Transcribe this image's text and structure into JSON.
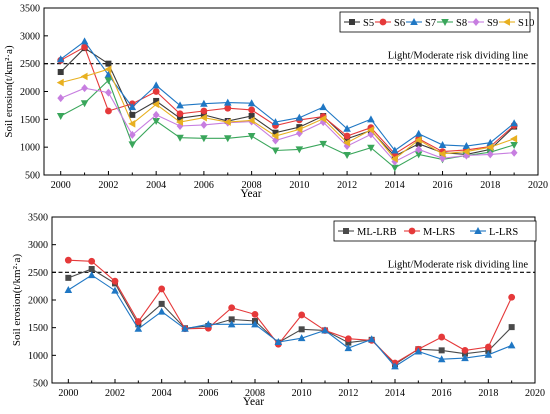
{
  "chart_data": [
    {
      "type": "line",
      "x": [
        2000,
        2001,
        2002,
        2003,
        2004,
        2005,
        2006,
        2007,
        2008,
        2009,
        2010,
        2011,
        2012,
        2013,
        2014,
        2015,
        2016,
        2017,
        2018,
        2019
      ],
      "xticks": [
        "2000",
        "2002",
        "2004",
        "2006",
        "2008",
        "2010",
        "2012",
        "2014",
        "2016",
        "2018",
        "2020"
      ],
      "yticks": [
        "500",
        "1000",
        "1500",
        "2000",
        "2500",
        "3000",
        "3500"
      ],
      "xlabel": "Year",
      "ylabel": "Soil erosion(t/km²·a)",
      "xlim": [
        1999.3,
        2020
      ],
      "ylim": [
        500,
        3500
      ],
      "legend_position": "top-right",
      "reference_line": {
        "y": 2500,
        "label": "Light/Moderate risk dividing line"
      },
      "series": [
        {
          "name": "S5",
          "color": "#3a3a3a",
          "marker": "square",
          "values": [
            2350,
            2780,
            2500,
            1580,
            1830,
            1520,
            1580,
            1470,
            1560,
            1260,
            1360,
            1560,
            1150,
            1300,
            840,
            1060,
            900,
            870,
            960,
            1370
          ]
        },
        {
          "name": "S6",
          "color": "#e5393a",
          "marker": "circle",
          "values": [
            2560,
            2800,
            1650,
            1780,
            2000,
            1600,
            1650,
            1700,
            1670,
            1390,
            1490,
            1550,
            1200,
            1350,
            880,
            1150,
            920,
            950,
            1010,
            1390
          ]
        },
        {
          "name": "S7",
          "color": "#1f77c4",
          "marker": "triangle",
          "values": [
            2580,
            2900,
            2300,
            1720,
            2110,
            1750,
            1780,
            1800,
            1790,
            1450,
            1530,
            1720,
            1330,
            1500,
            940,
            1240,
            1040,
            1020,
            1080,
            1430
          ]
        },
        {
          "name": "S8",
          "color": "#3aa65b",
          "marker": "triangle-down",
          "values": [
            1560,
            1790,
            2200,
            1050,
            1470,
            1170,
            1160,
            1160,
            1200,
            940,
            960,
            1060,
            860,
            990,
            630,
            870,
            780,
            850,
            910,
            1040
          ]
        },
        {
          "name": "S9",
          "color": "#c77ee0",
          "marker": "diamond",
          "values": [
            1880,
            2060,
            1980,
            1220,
            1580,
            1380,
            1400,
            1440,
            1460,
            1120,
            1250,
            1450,
            1020,
            1230,
            740,
            960,
            800,
            850,
            870,
            900
          ]
        },
        {
          "name": "S10",
          "color": "#e8b020",
          "marker": "triangle-left",
          "values": [
            2160,
            2270,
            2400,
            1420,
            1770,
            1450,
            1530,
            1450,
            1480,
            1200,
            1320,
            1510,
            1080,
            1310,
            790,
            1130,
            880,
            920,
            1000,
            1150
          ]
        }
      ]
    },
    {
      "type": "line",
      "x": [
        2000,
        2001,
        2002,
        2003,
        2004,
        2005,
        2006,
        2007,
        2008,
        2009,
        2010,
        2011,
        2012,
        2013,
        2014,
        2015,
        2016,
        2017,
        2018,
        2019
      ],
      "xticks": [
        "2000",
        "2002",
        "2004",
        "2006",
        "2008",
        "2010",
        "2012",
        "2014",
        "2016",
        "2018",
        "2020"
      ],
      "yticks": [
        "500",
        "1000",
        "1500",
        "2000",
        "2500",
        "3000",
        "3500"
      ],
      "xlabel": "Year",
      "ylabel": "Soil erosion(t/km²·a)",
      "xlim": [
        1999.3,
        2020
      ],
      "ylim": [
        500,
        3500
      ],
      "legend_position": "top-right",
      "reference_line": {
        "y": 2500,
        "label": "Light/Moderate risk dividing line"
      },
      "series": [
        {
          "name": "ML-LRB",
          "color": "#4a4a4a",
          "marker": "square",
          "values": [
            2400,
            2560,
            2300,
            1560,
            1930,
            1490,
            1530,
            1650,
            1620,
            1230,
            1470,
            1450,
            1230,
            1280,
            840,
            1110,
            1090,
            1030,
            1080,
            1510
          ]
        },
        {
          "name": "M-LRS",
          "color": "#e5393a",
          "marker": "circle",
          "values": [
            2720,
            2700,
            2340,
            1610,
            2200,
            1480,
            1490,
            1860,
            1740,
            1200,
            1730,
            1450,
            1300,
            1270,
            860,
            1110,
            1330,
            1090,
            1150,
            2050
          ]
        },
        {
          "name": "L-LRS",
          "color": "#1f77c4",
          "marker": "triangle",
          "values": [
            2180,
            2450,
            2170,
            1480,
            1790,
            1480,
            1560,
            1560,
            1560,
            1240,
            1310,
            1450,
            1130,
            1290,
            800,
            1070,
            930,
            950,
            1010,
            1180
          ]
        }
      ]
    }
  ]
}
